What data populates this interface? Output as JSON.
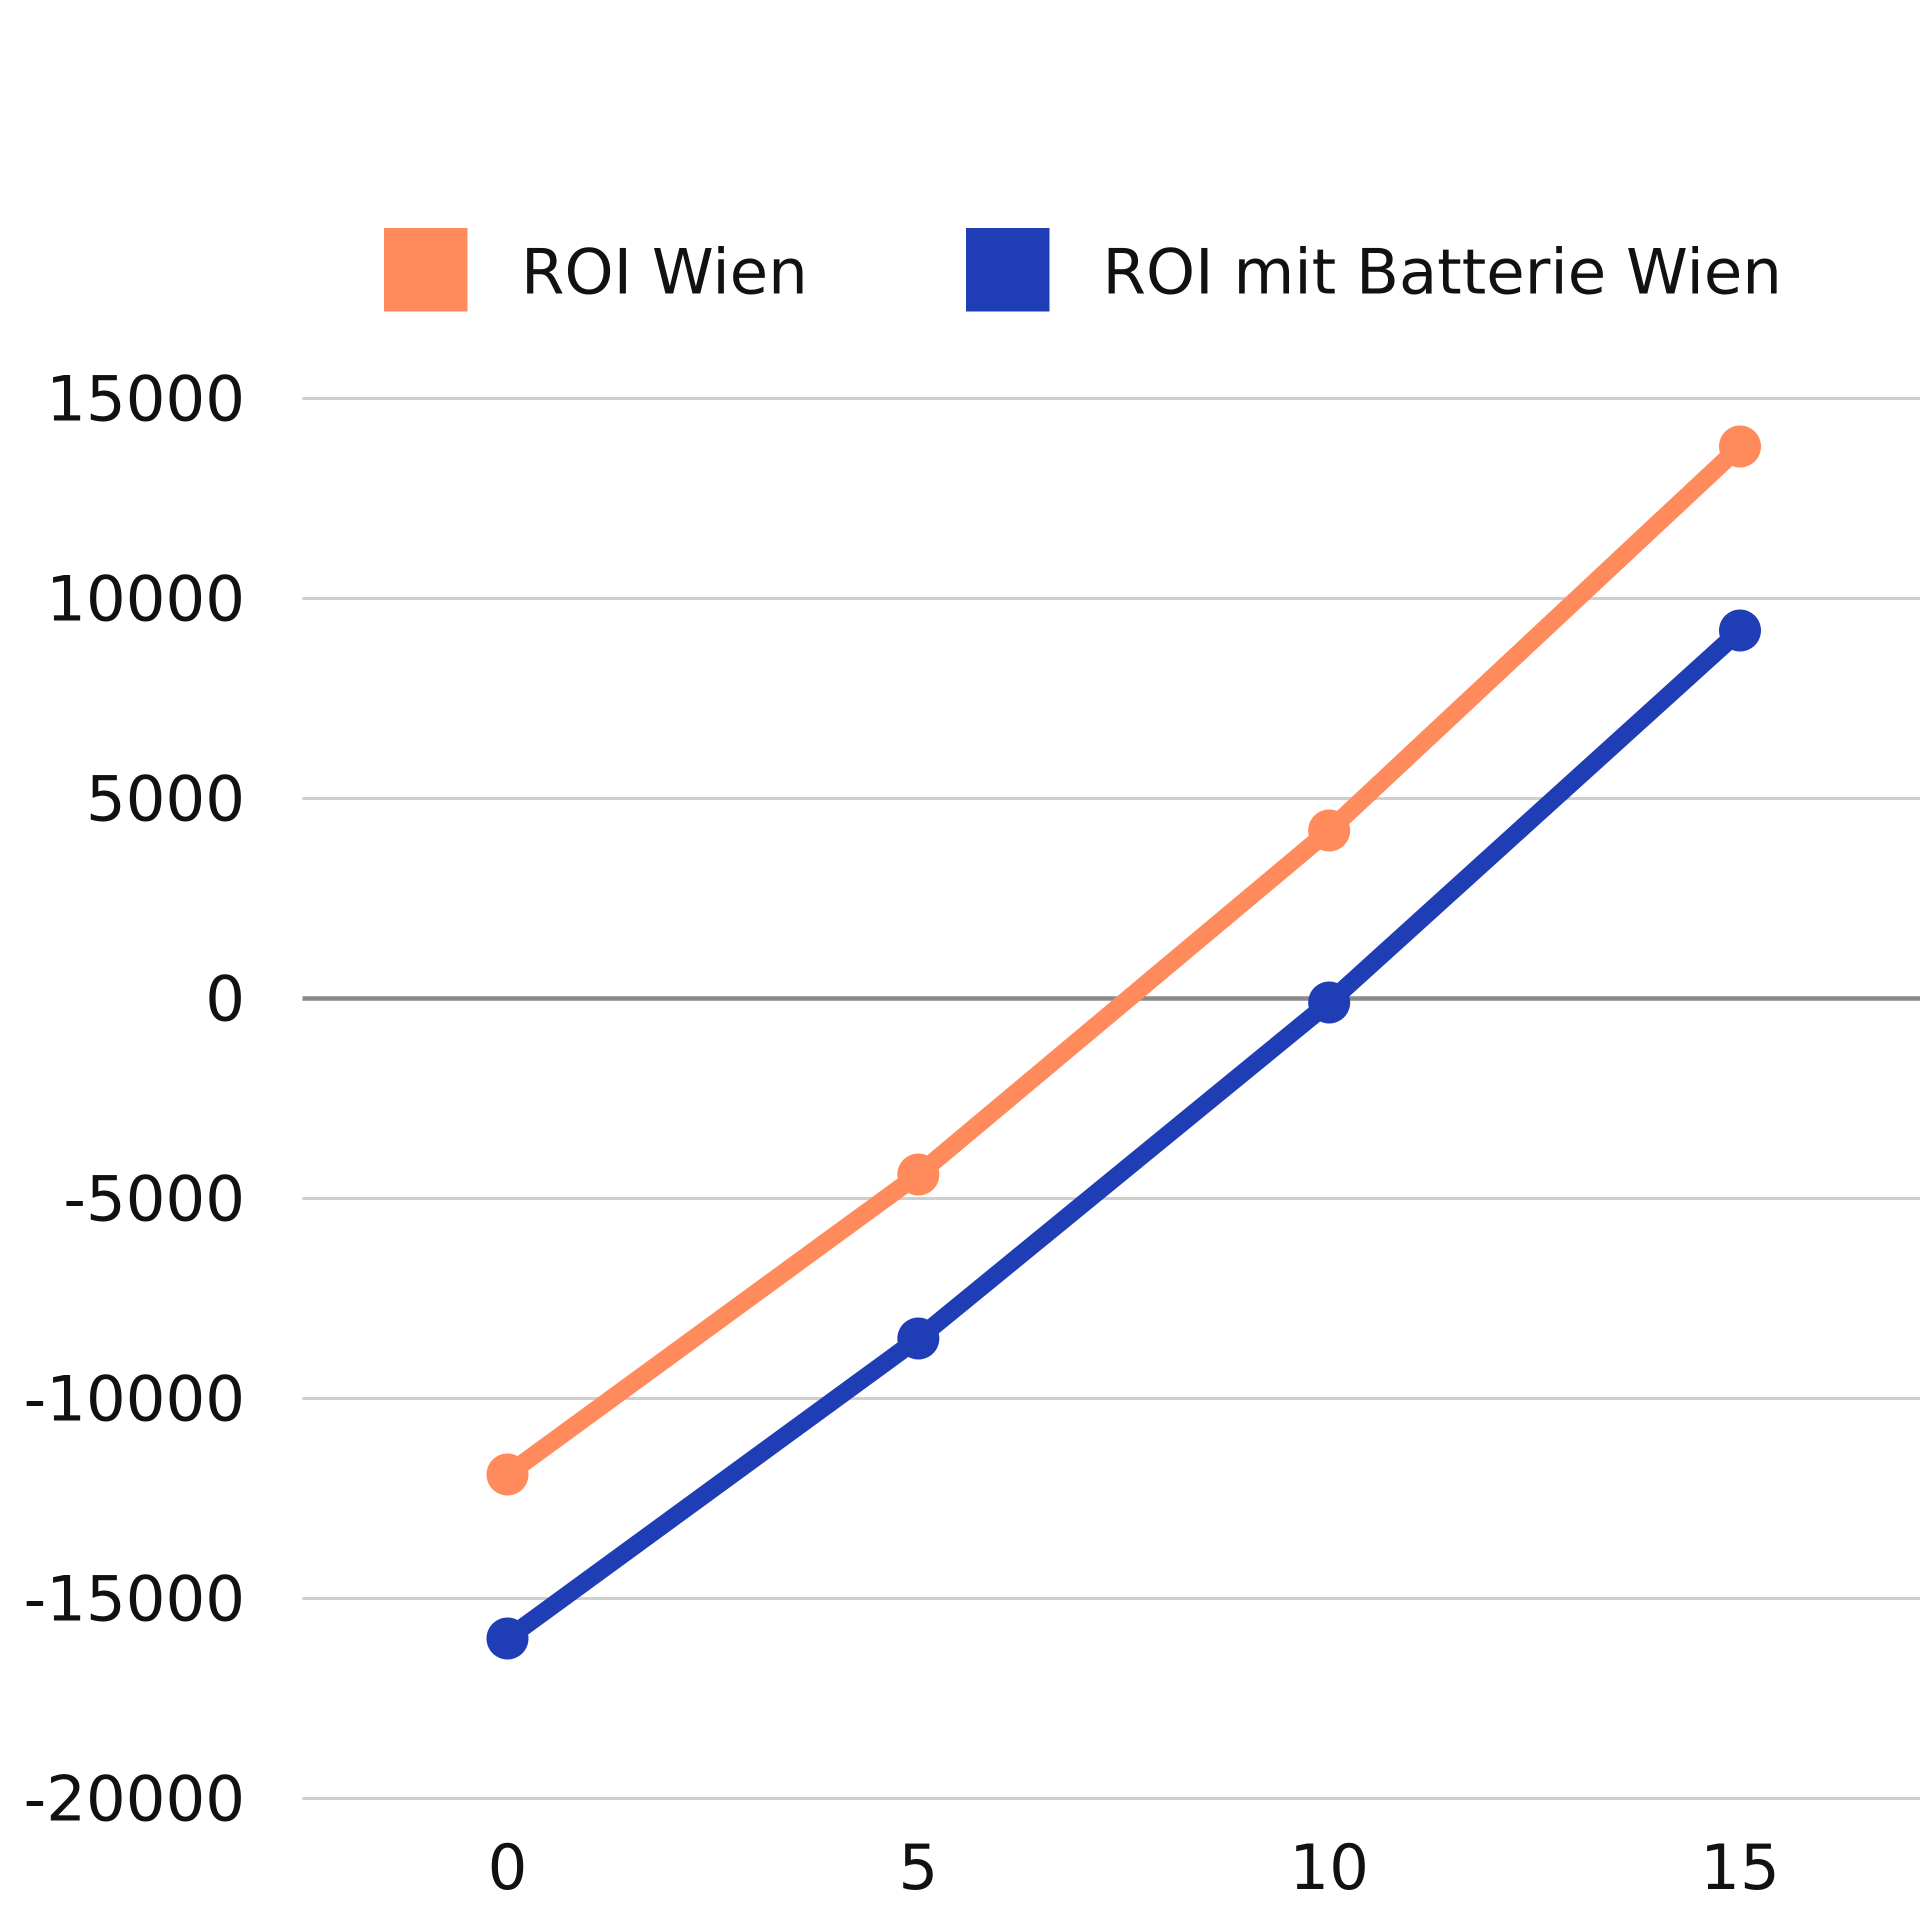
{
  "chart_data": {
    "type": "line",
    "x": [
      0,
      5,
      10,
      15
    ],
    "x_ticks": [
      "0",
      "5",
      "10",
      "15"
    ],
    "xlim": [
      -2.5,
      17.2
    ],
    "y_ticks": [
      "15000",
      "10000",
      "5000",
      "0",
      "-5000",
      "-10000",
      "-15000",
      "-20000"
    ],
    "y_tick_values": [
      15000,
      10000,
      5000,
      0,
      -5000,
      -10000,
      -15000,
      -20000
    ],
    "ylim": [
      -20000,
      15000
    ],
    "grid": true,
    "legend_position": "top",
    "series": [
      {
        "name": "ROI Wien",
        "color": "#FF8A5C",
        "values": [
          -11900,
          -4400,
          4200,
          13800
        ]
      },
      {
        "name": "ROI mit Batterie Wien",
        "color": "#1F3EB5",
        "values": [
          -16000,
          -8500,
          -100,
          9200
        ]
      }
    ]
  }
}
